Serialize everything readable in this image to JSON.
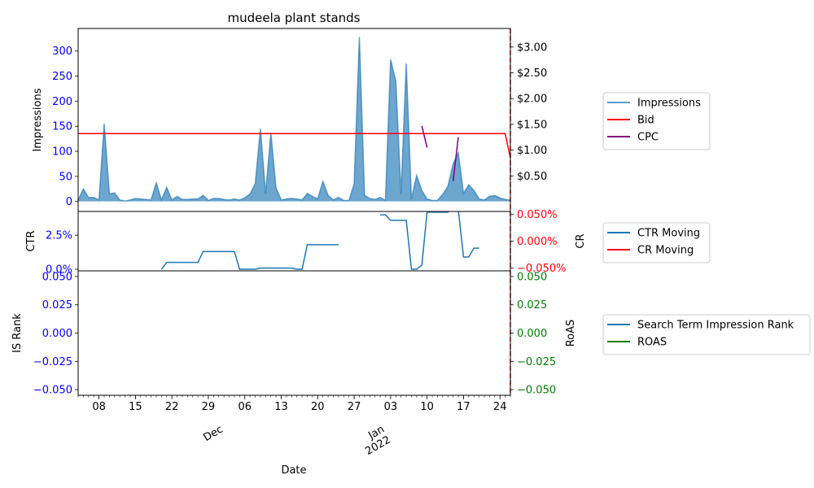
{
  "chart_data": {
    "type": "line",
    "title": "mudeela plant stands",
    "xlabel": "Date",
    "x_start": "2021-11-04",
    "x_end": "2022-01-26",
    "x_ticks": [
      {
        "date": "2021-11-08",
        "label": "08"
      },
      {
        "date": "2021-11-15",
        "label": "15"
      },
      {
        "date": "2021-11-22",
        "label": "22"
      },
      {
        "date": "2021-11-29",
        "label": "29"
      },
      {
        "date": "2021-12-06",
        "label": "06"
      },
      {
        "date": "2021-12-13",
        "label": "13"
      },
      {
        "date": "2021-12-20",
        "label": "20"
      },
      {
        "date": "2021-12-27",
        "label": "27"
      },
      {
        "date": "2022-01-03",
        "label": "03"
      },
      {
        "date": "2022-01-10",
        "label": "10"
      },
      {
        "date": "2022-01-17",
        "label": "17"
      },
      {
        "date": "2022-01-24",
        "label": "24"
      }
    ],
    "month_labels": [
      {
        "date": "2021-12-01",
        "lines": [
          "Dec"
        ]
      },
      {
        "date": "2022-01-01",
        "lines": [
          "Jan",
          "2022"
        ]
      }
    ],
    "panels": [
      {
        "id": "impressions",
        "ylabel": "Impressions",
        "y2label": "",
        "ylim": [
          -20,
          345
        ],
        "yticks": [
          0,
          50,
          100,
          150,
          200,
          250,
          300
        ],
        "y2lim": [
          -0.19,
          3.36
        ],
        "y2ticks": [
          0.5,
          1.0,
          1.5,
          2.0,
          2.5,
          3.0
        ],
        "y2ticklabels": [
          "$0.50",
          "$1.00",
          "$1.50",
          "$2.00",
          "$2.50",
          "$3.00"
        ],
        "legend": [
          {
            "name": "Impressions",
            "color": "#5b9bcc"
          },
          {
            "name": "Bid",
            "color": "#ff0000"
          },
          {
            "name": "CPC",
            "color": "#800080"
          }
        ],
        "series": [
          {
            "name": "Impressions",
            "kind": "area",
            "axis": "left",
            "color": "#1f77b4",
            "x": [
              "2021-11-04",
              "2021-11-05",
              "2021-11-06",
              "2021-11-07",
              "2021-11-08",
              "2021-11-09",
              "2021-11-10",
              "2021-11-11",
              "2021-11-12",
              "2021-11-13",
              "2021-11-14",
              "2021-11-15",
              "2021-11-16",
              "2021-11-17",
              "2021-11-18",
              "2021-11-19",
              "2021-11-20",
              "2021-11-21",
              "2021-11-22",
              "2021-11-23",
              "2021-11-24",
              "2021-11-25",
              "2021-11-26",
              "2021-11-27",
              "2021-11-28",
              "2021-11-29",
              "2021-11-30",
              "2021-12-01",
              "2021-12-02",
              "2021-12-03",
              "2021-12-04",
              "2021-12-05",
              "2021-12-06",
              "2021-12-07",
              "2021-12-08",
              "2021-12-09",
              "2021-12-10",
              "2021-12-11",
              "2021-12-12",
              "2021-12-13",
              "2021-12-14",
              "2021-12-15",
              "2021-12-16",
              "2021-12-17",
              "2021-12-18",
              "2021-12-19",
              "2021-12-20",
              "2021-12-21",
              "2021-12-22",
              "2021-12-23",
              "2021-12-24",
              "2021-12-25",
              "2021-12-26",
              "2021-12-27",
              "2021-12-28",
              "2021-12-29",
              "2021-12-30",
              "2021-12-31",
              "2022-01-01",
              "2022-01-02",
              "2022-01-03",
              "2022-01-04",
              "2022-01-05",
              "2022-01-06",
              "2022-01-07",
              "2022-01-08",
              "2022-01-09",
              "2022-01-10",
              "2022-01-11",
              "2022-01-12",
              "2022-01-13",
              "2022-01-14",
              "2022-01-15",
              "2022-01-16",
              "2022-01-17",
              "2022-01-18",
              "2022-01-19",
              "2022-01-20",
              "2022-01-21",
              "2022-01-22",
              "2022-01-23",
              "2022-01-24",
              "2022-01-25",
              "2022-01-26"
            ],
            "values": [
              3,
              25,
              8,
              8,
              3,
              155,
              15,
              17,
              3,
              1,
              3,
              6,
              5,
              4,
              3,
              37,
              3,
              28,
              3,
              10,
              4,
              4,
              5,
              5,
              12,
              2,
              6,
              6,
              4,
              3,
              5,
              3,
              7,
              15,
              35,
              145,
              15,
              137,
              27,
              3,
              5,
              6,
              5,
              3,
              16,
              10,
              5,
              40,
              12,
              3,
              8,
              2,
              2,
              35,
              328,
              12,
              6,
              4,
              8,
              2,
              283,
              240,
              15,
              275,
              5,
              52,
              22,
              5,
              2,
              2,
              14,
              30,
              75,
              97,
              16,
              33,
              22,
              5,
              3,
              10,
              12,
              7,
              4,
              3
            ]
          },
          {
            "name": "Bid",
            "kind": "line",
            "axis": "right",
            "color": "#ff0000",
            "x": [
              "2021-11-04",
              "2022-01-25",
              "2022-01-26"
            ],
            "values": [
              1.32,
              1.32,
              0.85
            ]
          },
          {
            "name": "CPC",
            "kind": "line",
            "axis": "right",
            "color": "#800080",
            "segments": [
              {
                "x": [
                  "2022-01-09",
                  "2022-01-10"
                ],
                "values": [
                  1.47,
                  1.05
                ]
              },
              {
                "x": [
                  "2022-01-15",
                  "2022-01-16"
                ],
                "values": [
                  0.4,
                  1.25
                ]
              }
            ]
          }
        ]
      },
      {
        "id": "ctr",
        "ylabel": "CTR",
        "y2label": "CR",
        "ylim": [
          -0.0012,
          0.0425
        ],
        "yticks": [
          0.0,
          0.025
        ],
        "yticklabels": [
          "0.0%",
          "2.5%"
        ],
        "y2lim": [
          -0.00055,
          0.00055
        ],
        "y2ticks": [
          -0.0005,
          0.0,
          0.0005
        ],
        "y2ticklabels": [
          "−0.050%",
          "0.000%",
          "0.050%"
        ],
        "legend": [
          {
            "name": "CTR Moving",
            "color": "#1f77b4"
          },
          {
            "name": "CR Moving",
            "color": "#ff0000"
          }
        ],
        "series": [
          {
            "name": "CTR Moving",
            "kind": "line",
            "axis": "left",
            "color": "#1f77b4",
            "segments": [
              {
                "x": [
                  "2021-11-20",
                  "2021-11-21",
                  "2021-11-27",
                  "2021-11-28",
                  "2021-12-04",
                  "2021-12-05",
                  "2021-12-08",
                  "2021-12-09",
                  "2021-12-15",
                  "2021-12-16",
                  "2021-12-17",
                  "2021-12-18",
                  "2021-12-24"
                ],
                "values": [
                  0.0,
                  0.005,
                  0.005,
                  0.013,
                  0.013,
                  0.0,
                  0.0,
                  0.0008,
                  0.0008,
                  0.0,
                  0.0,
                  0.018,
                  0.018
                ]
              },
              {
                "x": [
                  "2022-01-01",
                  "2022-01-02",
                  "2022-01-03",
                  "2022-01-06",
                  "2022-01-07",
                  "2022-01-08",
                  "2022-01-09",
                  "2022-01-10",
                  "2022-01-14",
                  "2022-01-15",
                  "2022-01-16",
                  "2022-01-17",
                  "2022-01-18",
                  "2022-01-19",
                  "2022-01-20"
                ],
                "values": [
                  0.04,
                  0.04,
                  0.036,
                  0.036,
                  0.0,
                  0.0,
                  0.003,
                  0.042,
                  0.042,
                  0.046,
                  0.044,
                  0.009,
                  0.009,
                  0.0155,
                  0.0155
                ]
              }
            ]
          }
        ]
      },
      {
        "id": "isrank",
        "ylabel": "IS Rank",
        "y2label": "RoAS",
        "ylim": [
          -0.055,
          0.055
        ],
        "yticks": [
          -0.05,
          -0.025,
          0.0,
          0.025,
          0.05
        ],
        "yticklabels": [
          "−0.050",
          "−0.025",
          "0.000",
          "0.025",
          "0.050"
        ],
        "y2lim": [
          -0.055,
          0.055
        ],
        "y2ticks": [
          -0.05,
          -0.025,
          0.0,
          0.025,
          0.05
        ],
        "y2ticklabels": [
          "−0.050",
          "−0.025",
          "0.000",
          "0.025",
          "0.050"
        ],
        "legend": [
          {
            "name": "Search Term Impression Rank",
            "color": "#1f77b4"
          },
          {
            "name": "ROAS",
            "color": "#008000"
          }
        ],
        "series": []
      }
    ],
    "colors": {
      "left_tick": "#0000ff",
      "ctr_right_tick": "#ff0000",
      "roas_right_tick": "#008000",
      "marker_line": "#ff0000"
    },
    "marker_line_date": "2022-01-26"
  }
}
